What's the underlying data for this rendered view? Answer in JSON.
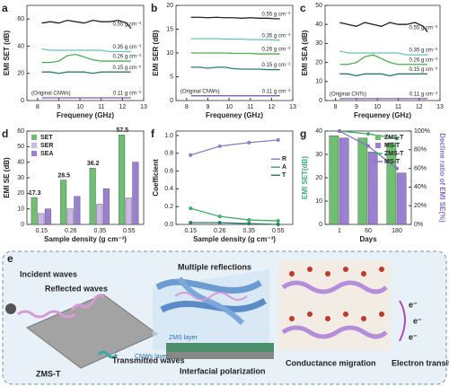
{
  "chart_data": [
    {
      "type": "line",
      "label": "a",
      "xlabel": "Frequeney (GHz)",
      "ylabel": "EMI SET (dB)",
      "xlim": [
        7.5,
        13
      ],
      "xticks": [
        8,
        9,
        10,
        11,
        12,
        13
      ],
      "ylim": [
        0,
        70
      ],
      "yticks": [
        0,
        20,
        40,
        60
      ],
      "annotation": "(Original CNWs)",
      "x": [
        8.2,
        8.6,
        9.0,
        9.4,
        9.8,
        10.2,
        10.6,
        11.0,
        11.4,
        11.8,
        12.2,
        12.4
      ],
      "series": [
        {
          "name": "0.55 g cm⁻³",
          "color": "#222222",
          "values": [
            57,
            58,
            57,
            59,
            58,
            57,
            59,
            58,
            58,
            59,
            57,
            53
          ]
        },
        {
          "name": "0.35 g cm⁻³",
          "color": "#6cc4b4",
          "values": [
            38,
            37,
            37,
            37,
            37,
            37,
            37,
            37,
            36,
            36,
            36,
            36
          ]
        },
        {
          "name": "0.26 g cm⁻³",
          "color": "#4caf50",
          "values": [
            28,
            28,
            29,
            33,
            34,
            32,
            30,
            29,
            29,
            29,
            29,
            29
          ]
        },
        {
          "name": "0.15 g cm⁻³",
          "color": "#2e7d6a",
          "values": [
            21,
            21,
            20,
            21,
            21,
            21,
            20,
            21,
            21,
            21,
            21,
            21
          ]
        },
        {
          "name": "0.11 g cm⁻³",
          "color": "#7b5ea7",
          "values": [
            2,
            2,
            2,
            2,
            2,
            2,
            2,
            2,
            2,
            2,
            2,
            2
          ]
        }
      ]
    },
    {
      "type": "line",
      "label": "b",
      "xlabel": "Frequeney (GHz)",
      "ylabel": "EMI SER (dB)",
      "xlim": [
        7.5,
        13
      ],
      "xticks": [
        8,
        9,
        10,
        11,
        12,
        13
      ],
      "ylim": [
        0,
        20
      ],
      "yticks": [
        0,
        5,
        10,
        15,
        20
      ],
      "annotation": "(Original CNWs)",
      "x": [
        8.2,
        8.6,
        9.0,
        9.4,
        9.8,
        10.2,
        10.6,
        11.0,
        11.4,
        11.8,
        12.2,
        12.4
      ],
      "series": [
        {
          "name": "0.55 g cm⁻³",
          "color": "#222222",
          "values": [
            17.5,
            17.5,
            17.4,
            17.5,
            17.4,
            17.4,
            17.3,
            17.4,
            17.3,
            17.3,
            17.2,
            17.2
          ]
        },
        {
          "name": "0.35 g cm⁻³",
          "color": "#6cc4b4",
          "values": [
            13,
            13,
            13,
            13,
            12.9,
            12.9,
            12.9,
            12.8,
            12.8,
            12.8,
            12.7,
            12.7
          ]
        },
        {
          "name": "0.26 g cm⁻³",
          "color": "#4caf50",
          "values": [
            10,
            10,
            10,
            10,
            10,
            9.9,
            9.9,
            9.9,
            9.8,
            9.8,
            9.8,
            9.8
          ]
        },
        {
          "name": "0.15 g cm⁻³",
          "color": "#2e7d6a",
          "values": [
            7,
            7,
            6.8,
            7,
            7,
            6.7,
            6.6,
            6.6,
            6.6,
            6.5,
            6.5,
            6.5
          ]
        },
        {
          "name": "0.11 g cm⁻³",
          "color": "#7b5ea7",
          "values": [
            1,
            1,
            1,
            1,
            1,
            1,
            1,
            1,
            1,
            1,
            1,
            1
          ]
        }
      ]
    },
    {
      "type": "line",
      "label": "c",
      "xlabel": "Frequeney (GHz)",
      "ylabel": "EMI SEA (dB)",
      "xlim": [
        7.5,
        13
      ],
      "xticks": [
        8,
        9,
        10,
        11,
        12,
        13
      ],
      "ylim": [
        0,
        50
      ],
      "yticks": [
        0,
        10,
        20,
        30,
        40,
        50
      ],
      "annotation": "(Original CNTs)",
      "x": [
        8.2,
        8.6,
        9.0,
        9.4,
        9.8,
        10.2,
        10.6,
        11.0,
        11.4,
        11.8,
        12.2,
        12.4
      ],
      "series": [
        {
          "name": "0.55 g cm⁻³",
          "color": "#222222",
          "values": [
            41,
            40,
            39,
            41,
            40,
            39,
            41,
            40,
            40,
            41,
            39,
            36
          ]
        },
        {
          "name": "0.35 g cm⁻³",
          "color": "#6cc4b4",
          "values": [
            26,
            25,
            25,
            25,
            25,
            25,
            25,
            25,
            24,
            24,
            24,
            24
          ]
        },
        {
          "name": "0.26 g cm⁻³",
          "color": "#4caf50",
          "values": [
            19,
            19,
            20,
            23,
            24,
            22,
            20,
            19,
            19,
            19,
            19,
            19
          ]
        },
        {
          "name": "0.15 g cm⁻³",
          "color": "#2e7d6a",
          "values": [
            14,
            14,
            13,
            14,
            14,
            14,
            13,
            14,
            14,
            14,
            14,
            14
          ]
        },
        {
          "name": "0.11 g cm⁻³",
          "color": "#7b5ea7",
          "values": [
            1,
            1,
            1,
            1,
            1,
            1,
            1,
            1,
            1,
            1,
            1,
            1
          ]
        }
      ]
    },
    {
      "type": "bar",
      "label": "d",
      "xlabel": "Sample density (g cm⁻³)",
      "ylabel": "EMI SE (dB)",
      "categories": [
        "0.15",
        "0.26",
        "0.35",
        "0.55"
      ],
      "ylim": [
        0,
        60
      ],
      "yticks": [
        0,
        10,
        20,
        30,
        40,
        50,
        60
      ],
      "legend": "upper left",
      "series": [
        {
          "name": "SET",
          "color": "#6fbf73",
          "values": [
            17.3,
            28.5,
            36.2,
            57.5
          ],
          "data_labels": true
        },
        {
          "name": "SER",
          "color": "#c9b8e8",
          "values": [
            7,
            10,
            13,
            17
          ]
        },
        {
          "name": "SEA",
          "color": "#9b7fd1",
          "values": [
            10,
            18,
            23,
            40
          ]
        }
      ]
    },
    {
      "type": "line",
      "label": "f",
      "xlabel": "Sample density (g cm⁻³)",
      "ylabel": "Coefficient",
      "categories": [
        "0.15",
        "0.26",
        "0.35",
        "0.55"
      ],
      "ylim": [
        0,
        1.05
      ],
      "yticks": [
        {
          "value": 0,
          "label": "0.0"
        },
        {
          "value": 0.2,
          "label": "0.2"
        },
        {
          "value": 0.4,
          "label": "0.4"
        },
        {
          "value": 0.6,
          "label": "0.6"
        },
        {
          "value": 0.8,
          "label": "0.8"
        },
        {
          "value": 1,
          "label": "1.0"
        }
      ],
      "legend": "right",
      "markers": true,
      "series": [
        {
          "name": "R",
          "color": "#8a7fc9",
          "values": [
            0.78,
            0.88,
            0.92,
            0.95
          ]
        },
        {
          "name": "A",
          "color": "#3fae6a",
          "values": [
            0.18,
            0.09,
            0.05,
            0.04
          ]
        },
        {
          "name": "T",
          "color": "#2e7d6a",
          "values": [
            0.02,
            0.02,
            0.01,
            0.0
          ]
        }
      ]
    },
    {
      "type": "combo",
      "label": "g",
      "xlabel": "Days",
      "ylabel": "EMI SET(dB)",
      "y2label": "Decline ratio of EMI SE(%)",
      "categories": [
        "1",
        "60",
        "180"
      ],
      "ylim": [
        0,
        40
      ],
      "yticks": [
        0,
        10,
        20,
        30,
        40
      ],
      "y2lim": [
        0,
        100
      ],
      "y2ticks": [
        {
          "value": 0,
          "label": "0%"
        },
        {
          "value": 20,
          "label": "20%"
        },
        {
          "value": 40,
          "label": "40%"
        },
        {
          "value": 60,
          "label": "60%"
        },
        {
          "value": 80,
          "label": "80%"
        },
        {
          "value": 100,
          "label": "100%"
        }
      ],
      "legend": "upper right",
      "series": [
        {
          "name": "ZMS-T",
          "color": "#6fbf73",
          "values": [
            38,
            37,
            35
          ]
        },
        {
          "name": "MS-T",
          "color": "#9b7fd1",
          "values": [
            37,
            31,
            22
          ]
        },
        {
          "name": "ZMS-T",
          "color": "#3fae6a",
          "values": [
            100,
            97,
            92
          ],
          "axis": "y2"
        },
        {
          "name": "MS-T",
          "color": "#8a6fc9",
          "values": [
            100,
            84,
            60
          ],
          "axis": "y2"
        }
      ]
    }
  ],
  "diagram": {
    "label": "e",
    "incident": "Incident waves",
    "reflected": "Reflected waves",
    "transmitted": "Transmitted waves",
    "sample": "ZMS-T",
    "multiple": "Multiple reflections",
    "zms_layer": "ZMS layer",
    "cnws_layer": "CNWs layer",
    "interfacial": "Interfacial polarization",
    "conductance": "Conductance migration",
    "electron": "Electron transition",
    "electrons": [
      "e⁻",
      "e⁻",
      "e⁻"
    ]
  }
}
